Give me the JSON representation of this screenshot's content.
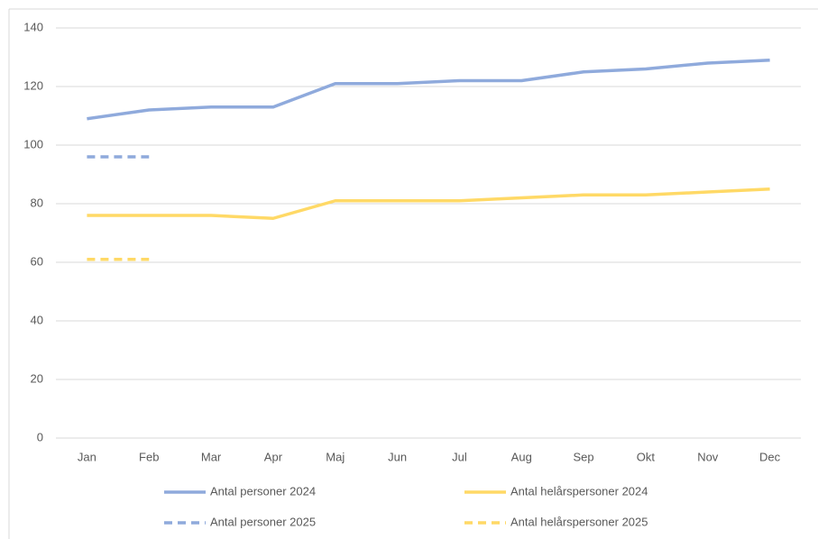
{
  "chart_data": {
    "type": "line",
    "categories": [
      "Jan",
      "Feb",
      "Mar",
      "Apr",
      "Maj",
      "Jun",
      "Jul",
      "Aug",
      "Sep",
      "Okt",
      "Nov",
      "Dec"
    ],
    "series": [
      {
        "name": "Antal personer 2024",
        "color": "#8faadc",
        "dashed": false,
        "values": [
          109,
          112,
          113,
          113,
          121,
          121,
          122,
          122,
          125,
          126,
          128,
          129
        ]
      },
      {
        "name": "Antal helårspersoner 2024",
        "color": "#ffd966",
        "dashed": false,
        "values": [
          76,
          76,
          76,
          75,
          81,
          81,
          81,
          82,
          83,
          83,
          84,
          85
        ]
      },
      {
        "name": "Antal personer 2025",
        "color": "#8faadc",
        "dashed": true,
        "values": [
          96,
          96,
          null,
          null,
          null,
          null,
          null,
          null,
          null,
          null,
          null,
          null
        ]
      },
      {
        "name": "Antal helårspersoner 2025",
        "color": "#ffd966",
        "dashed": true,
        "values": [
          61,
          61,
          null,
          null,
          null,
          null,
          null,
          null,
          null,
          null,
          null,
          null
        ]
      }
    ],
    "ylim": [
      0,
      140
    ],
    "yticks": [
      0,
      20,
      40,
      60,
      80,
      100,
      120,
      140
    ],
    "grid": true,
    "legend": "bottom"
  }
}
